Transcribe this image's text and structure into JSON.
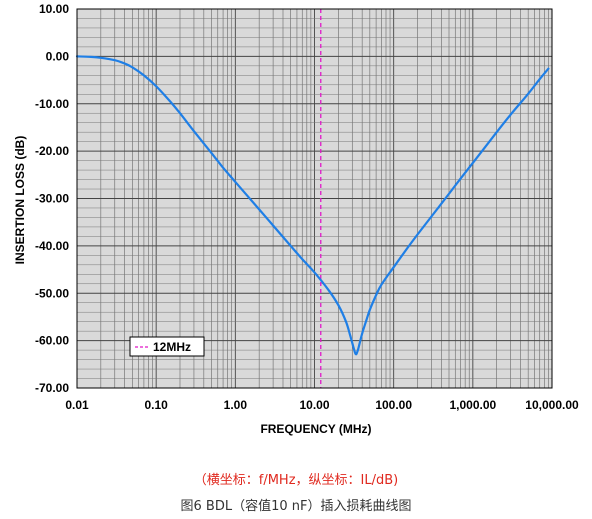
{
  "chart_data": {
    "type": "line",
    "ylabel": "INSERTION LOSS (dB)",
    "xlabel": "FREQUENCY (MHz)",
    "x_scale": "log",
    "xlim": [
      0.01,
      10000
    ],
    "ylim": [
      -70,
      10
    ],
    "grid": true,
    "x_ticks": [
      {
        "value": 0.01,
        "label": "0.01"
      },
      {
        "value": 0.1,
        "label": "0.10"
      },
      {
        "value": 1,
        "label": "1.00"
      },
      {
        "value": 10,
        "label": "10.00"
      },
      {
        "value": 100,
        "label": "100.00"
      },
      {
        "value": 1000,
        "label": "1,000.00"
      },
      {
        "value": 10000,
        "label": "10,000.00"
      }
    ],
    "y_ticks": [
      {
        "value": 10,
        "label": "10.00"
      },
      {
        "value": 0,
        "label": "0.00"
      },
      {
        "value": -10,
        "label": "-10.00"
      },
      {
        "value": -20,
        "label": "-20.00"
      },
      {
        "value": -30,
        "label": "-30.00"
      },
      {
        "value": -40,
        "label": "-40.00"
      },
      {
        "value": -50,
        "label": "-50.00"
      },
      {
        "value": -60,
        "label": "-60.00"
      },
      {
        "value": -70,
        "label": "-70.00"
      }
    ],
    "series": [
      {
        "color": "#1f7fe6",
        "x": [
          0.01,
          0.015,
          0.02,
          0.03,
          0.04,
          0.05,
          0.07,
          0.1,
          0.15,
          0.2,
          0.3,
          0.5,
          0.7,
          1,
          2,
          3,
          5,
          7,
          10,
          15,
          20,
          25,
          28,
          30,
          33,
          35,
          37,
          40,
          45,
          50,
          60,
          70,
          100,
          150,
          200,
          300,
          500,
          700,
          1000,
          2000,
          3000,
          5000,
          7000,
          9000
        ],
        "y": [
          0,
          -0.1,
          -0.3,
          -0.8,
          -1.5,
          -2.3,
          -4,
          -6.3,
          -9.5,
          -12,
          -15.8,
          -20.4,
          -23.5,
          -26.5,
          -32.3,
          -35.7,
          -40,
          -42.8,
          -45.6,
          -49.3,
          -52.5,
          -56,
          -58.7,
          -60.5,
          -62.8,
          -62.2,
          -60.7,
          -58.5,
          -55.8,
          -53.5,
          -50.4,
          -48.2,
          -44.5,
          -40.4,
          -37.6,
          -33.8,
          -29,
          -25.8,
          -22.5,
          -16,
          -12.3,
          -7.9,
          -4.8,
          -2.6
        ]
      }
    ],
    "markers": [
      {
        "type": "vline",
        "x": 12,
        "color": "#e018c8",
        "style": "dashed",
        "legend": "12MHz"
      }
    ],
    "legend_position": "bottom-left"
  },
  "captions": {
    "axis_note": "（横坐标：f/MHz，纵坐标：IL/dB)",
    "figure_title": "图6 BDL（容值10 nF）插入损耗曲线图"
  }
}
